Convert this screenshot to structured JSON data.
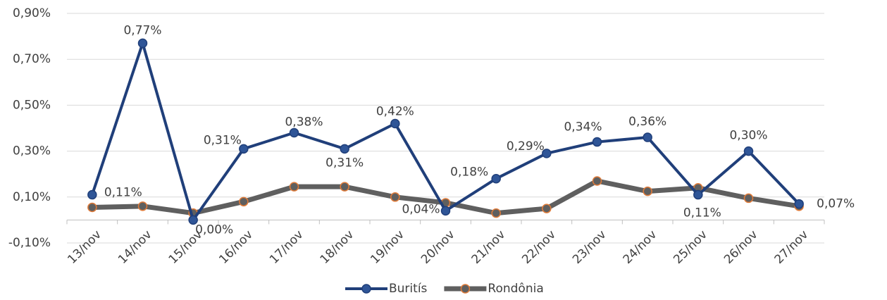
{
  "chart_data": {
    "type": "line",
    "categories": [
      "13/nov",
      "14/nov",
      "15/nov",
      "16/nov",
      "17/nov",
      "18/nov",
      "19/nov",
      "20/nov",
      "21/nov",
      "22/nov",
      "23/nov",
      "24/nov",
      "25/nov",
      "26/nov",
      "27/nov"
    ],
    "series": [
      {
        "name": "Buritís",
        "color": "#203f7a",
        "marker_color": "#2f5597",
        "values": [
          0.11,
          0.77,
          0.0,
          0.31,
          0.38,
          0.31,
          0.42,
          0.04,
          0.18,
          0.29,
          0.34,
          0.36,
          0.11,
          0.3,
          0.07
        ],
        "value_labels": [
          "0,11%",
          "0,77%",
          "0,00%",
          "0,31%",
          "0,38%",
          "0,31%",
          "0,42%",
          "0,04%",
          "0,18%",
          "0,29%",
          "0,34%",
          "0,36%",
          "0,11%",
          "0,30%",
          "0,07%"
        ]
      },
      {
        "name": "Rondônia",
        "color": "#5f5f5f",
        "marker_color": "#e07b39",
        "values": [
          0.055,
          0.06,
          0.03,
          0.08,
          0.145,
          0.145,
          0.1,
          0.075,
          0.03,
          0.05,
          0.17,
          0.125,
          0.14,
          0.095,
          0.06
        ]
      }
    ],
    "ylim": [
      -0.1,
      0.9
    ],
    "yticks": [
      {
        "value": -0.1,
        "label": "-0,10%"
      },
      {
        "value": 0.1,
        "label": "0,10%"
      },
      {
        "value": 0.3,
        "label": "0,30%"
      },
      {
        "value": 0.5,
        "label": "0,50%"
      },
      {
        "value": 0.7,
        "label": "0,70%"
      },
      {
        "value": 0.9,
        "label": "0,90%"
      }
    ],
    "grid": true,
    "legend": "bottom"
  }
}
